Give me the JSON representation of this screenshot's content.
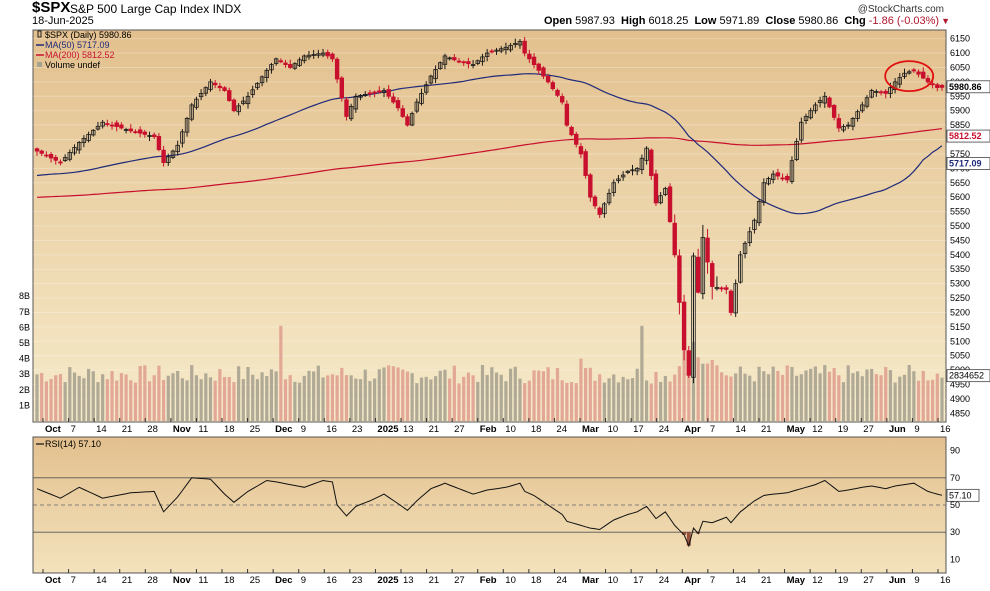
{
  "header": {
    "symbol": "$SPX",
    "name": "S&P 500 Large Cap Index",
    "exchange": "INDX",
    "date": "18-Jun-2025",
    "copyright": "@StockCharts.com",
    "open_label": "Open",
    "open": "5987.93",
    "high_label": "High",
    "high": "6018.25",
    "low_label": "Low",
    "low": "5971.89",
    "close_label": "Close",
    "close": "5980.86",
    "chg_label": "Chg",
    "chg": "-1.86 (-0.03%)"
  },
  "colors": {
    "up": "#1a1a1a",
    "down": "#c8102e",
    "ma50": "#1f2a7a",
    "ma200": "#c8102e",
    "vol_up": "#a8a290",
    "vol_down": "#e0a090",
    "bg_top": "#e6c89a",
    "bg_bottom": "#f5e8c6",
    "highlight": "#e01010"
  },
  "chart_data": [
    {
      "type": "candlestick",
      "legend": [
        {
          "label": "$SPX (Daily) 5980.86",
          "kind": "candle"
        },
        {
          "label": "MA(50) 5717.09",
          "kind": "line",
          "color": "#1f2a7a"
        },
        {
          "label": "MA(200) 5812.52",
          "kind": "line",
          "color": "#c8102e"
        },
        {
          "label": "Volume undef",
          "kind": "bar"
        }
      ],
      "ylim": [
        4820,
        6180
      ],
      "yticks": [
        4850,
        4900,
        4950,
        5000,
        5050,
        5100,
        5150,
        5200,
        5250,
        5300,
        5350,
        5400,
        5450,
        5500,
        5550,
        5600,
        5650,
        5700,
        5750,
        5800,
        5850,
        5900,
        5950,
        6000,
        6050,
        6100,
        6150
      ],
      "volume_ticks": [
        "1B",
        "2B",
        "3B",
        "4B",
        "5B",
        "6B",
        "7B",
        "8B"
      ],
      "x_labels": [
        "Oct",
        "7",
        "14",
        "21",
        "28",
        "Nov",
        "11",
        "18",
        "25",
        "Dec",
        "9",
        "16",
        "23",
        "2025",
        "13",
        "21",
        "27",
        "Feb",
        "10",
        "18",
        "24",
        "Mar",
        "10",
        "17",
        "24",
        "Apr",
        "7",
        "14",
        "21",
        "May",
        "12",
        "19",
        "27",
        "Jun",
        "9",
        "16"
      ],
      "bold_labels": [
        "Oct",
        "Nov",
        "Dec",
        "2025",
        "Feb",
        "Mar",
        "Apr",
        "May",
        "Jun"
      ],
      "last_values": {
        "close": "5980.86",
        "ma200": "5812.52",
        "ma50": "5717.09",
        "volume": "2834652"
      },
      "close_points": [
        [
          0,
          5760
        ],
        [
          5,
          5720
        ],
        [
          9,
          5790
        ],
        [
          14,
          5860
        ],
        [
          20,
          5830
        ],
        [
          25,
          5810
        ],
        [
          27,
          5720
        ],
        [
          30,
          5780
        ],
        [
          33,
          5920
        ],
        [
          37,
          6000
        ],
        [
          40,
          5970
        ],
        [
          42,
          5900
        ],
        [
          45,
          5950
        ],
        [
          49,
          6040
        ],
        [
          51,
          6080
        ],
        [
          54,
          6050
        ],
        [
          57,
          6090
        ],
        [
          61,
          6100
        ],
        [
          63,
          6080
        ],
        [
          64,
          6010
        ],
        [
          66,
          5880
        ],
        [
          68,
          5950
        ],
        [
          71,
          5960
        ],
        [
          74,
          5970
        ],
        [
          77,
          5910
        ],
        [
          79,
          5850
        ],
        [
          81,
          5930
        ],
        [
          84,
          6020
        ],
        [
          87,
          6090
        ],
        [
          90,
          6070
        ],
        [
          93,
          6060
        ],
        [
          96,
          6100
        ],
        [
          100,
          6120
        ],
        [
          103,
          6140
        ],
        [
          104,
          6100
        ],
        [
          106,
          6060
        ],
        [
          109,
          6000
        ],
        [
          112,
          5930
        ],
        [
          113,
          5850
        ],
        [
          116,
          5750
        ],
        [
          118,
          5600
        ],
        [
          120,
          5540
        ],
        [
          123,
          5650
        ],
        [
          126,
          5690
        ],
        [
          128,
          5700
        ],
        [
          130,
          5770
        ],
        [
          132,
          5580
        ],
        [
          134,
          5630
        ],
        [
          136,
          5400
        ],
        [
          138,
          5070
        ],
        [
          139,
          4982
        ],
        [
          140,
          5396
        ],
        [
          141,
          5270
        ],
        [
          142,
          5460
        ],
        [
          144,
          5290
        ],
        [
          147,
          5280
        ],
        [
          148,
          5200
        ],
        [
          150,
          5400
        ],
        [
          153,
          5520
        ],
        [
          155,
          5650
        ],
        [
          157,
          5680
        ],
        [
          160,
          5660
        ],
        [
          163,
          5860
        ],
        [
          166,
          5920
        ],
        [
          168,
          5950
        ],
        [
          171,
          5840
        ],
        [
          173,
          5850
        ],
        [
          176,
          5920
        ],
        [
          178,
          5970
        ],
        [
          181,
          5960
        ],
        [
          183,
          6000
        ],
        [
          185,
          6030
        ],
        [
          187,
          6040
        ],
        [
          190,
          6000
        ],
        [
          192,
          5980
        ],
        [
          193,
          5981
        ]
      ],
      "rsi_ticks": [
        10,
        30,
        50,
        70,
        90
      ],
      "rsi_label": "RSI(14) 57.10",
      "rsi_value": "57.10",
      "rsi_points": [
        [
          0,
          62
        ],
        [
          5,
          55
        ],
        [
          9,
          63
        ],
        [
          14,
          55
        ],
        [
          20,
          59
        ],
        [
          25,
          60
        ],
        [
          27,
          45
        ],
        [
          30,
          56
        ],
        [
          33,
          70
        ],
        [
          37,
          69
        ],
        [
          40,
          58
        ],
        [
          42,
          52
        ],
        [
          45,
          60
        ],
        [
          49,
          68
        ],
        [
          51,
          67
        ],
        [
          54,
          65
        ],
        [
          57,
          63
        ],
        [
          61,
          68
        ],
        [
          63,
          67
        ],
        [
          64,
          50
        ],
        [
          66,
          42
        ],
        [
          68,
          49
        ],
        [
          71,
          53
        ],
        [
          74,
          58
        ],
        [
          77,
          51
        ],
        [
          79,
          46
        ],
        [
          81,
          53
        ],
        [
          84,
          62
        ],
        [
          87,
          66
        ],
        [
          90,
          62
        ],
        [
          93,
          58
        ],
        [
          96,
          61
        ],
        [
          100,
          63
        ],
        [
          103,
          66
        ],
        [
          104,
          60
        ],
        [
          106,
          57
        ],
        [
          109,
          50
        ],
        [
          112,
          43
        ],
        [
          113,
          38
        ],
        [
          116,
          35
        ],
        [
          118,
          33
        ],
        [
          120,
          32
        ],
        [
          123,
          39
        ],
        [
          126,
          43
        ],
        [
          128,
          45
        ],
        [
          130,
          49
        ],
        [
          132,
          40
        ],
        [
          134,
          45
        ],
        [
          136,
          35
        ],
        [
          138,
          28
        ],
        [
          139,
          20
        ],
        [
          140,
          33
        ],
        [
          141,
          29
        ],
        [
          142,
          38
        ],
        [
          144,
          37
        ],
        [
          147,
          41
        ],
        [
          148,
          37
        ],
        [
          150,
          45
        ],
        [
          153,
          53
        ],
        [
          155,
          57
        ],
        [
          157,
          58
        ],
        [
          160,
          59
        ],
        [
          163,
          62
        ],
        [
          166,
          65
        ],
        [
          168,
          68
        ],
        [
          171,
          60
        ],
        [
          173,
          61
        ],
        [
          176,
          63
        ],
        [
          178,
          64
        ],
        [
          181,
          62
        ],
        [
          183,
          64
        ],
        [
          185,
          65
        ],
        [
          187,
          66
        ],
        [
          190,
          60
        ],
        [
          192,
          58
        ],
        [
          193,
          57.1
        ]
      ]
    }
  ]
}
